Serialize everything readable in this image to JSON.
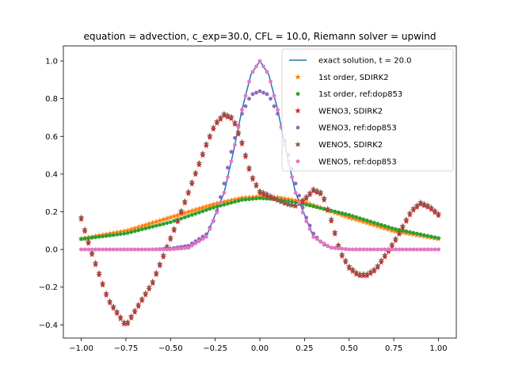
{
  "chart_data": {
    "type": "line",
    "title": "equation = advection, c_exp=30.0, CFL = 10.0, Riemann solver = upwind",
    "xlabel": "",
    "ylabel": "",
    "xlim": [
      -1.1,
      1.1
    ],
    "ylim": [
      -0.47,
      1.08
    ],
    "x_ticks": [
      -1.0,
      -0.75,
      -0.5,
      -0.25,
      0.0,
      0.25,
      0.5,
      0.75,
      1.0
    ],
    "x_tick_labels": [
      "−1.00",
      "−0.75",
      "−0.50",
      "−0.25",
      "0.00",
      "0.25",
      "0.50",
      "0.75",
      "1.00"
    ],
    "y_ticks": [
      -0.4,
      -0.2,
      0.0,
      0.2,
      0.4,
      0.6,
      0.8,
      1.0
    ],
    "y_tick_labels": [
      "−0.4",
      "−0.2",
      "0.0",
      "0.2",
      "0.4",
      "0.6",
      "0.8",
      "1.0"
    ],
    "grid": false,
    "legend_position": "top-right",
    "x_domain": [
      -1.0,
      1.0
    ],
    "sample_count": 101,
    "series": [
      {
        "name": "exact solution, t = 20.0",
        "style": "line",
        "color": "#1f77b4",
        "x": [
          -1.0,
          -0.9,
          -0.8,
          -0.7,
          -0.6,
          -0.5,
          -0.4,
          -0.3,
          -0.2,
          -0.15,
          -0.1,
          -0.05,
          0.0,
          0.05,
          0.1,
          0.15,
          0.2,
          0.3,
          0.4,
          0.5,
          0.6,
          0.7,
          0.8,
          0.9,
          1.0
        ],
        "y": [
          0.0,
          0.0,
          0.0,
          0.0,
          0.0,
          0.0005,
          0.008,
          0.067,
          0.301,
          0.509,
          0.741,
          0.928,
          1.0,
          0.928,
          0.741,
          0.509,
          0.301,
          0.067,
          0.008,
          0.0005,
          0.0,
          0.0,
          0.0,
          0.0,
          0.0
        ]
      },
      {
        "name": "1st order, SDIRK2",
        "style": "star",
        "color": "#ff7f0e",
        "x": [
          -1.0,
          -0.75,
          -0.5,
          -0.25,
          -0.1,
          0.0,
          0.1,
          0.25,
          0.5,
          0.75,
          1.0
        ],
        "y": [
          0.057,
          0.098,
          0.17,
          0.242,
          0.273,
          0.28,
          0.276,
          0.25,
          0.17,
          0.098,
          0.057
        ]
      },
      {
        "name": "1st order, ref:dop853",
        "style": "dot",
        "color": "#2ca02c",
        "x": [
          -1.0,
          -0.75,
          -0.5,
          -0.25,
          -0.1,
          0.0,
          0.1,
          0.25,
          0.5,
          0.75,
          1.0
        ],
        "y": [
          0.055,
          0.085,
          0.145,
          0.225,
          0.263,
          0.272,
          0.265,
          0.24,
          0.183,
          0.11,
          0.06
        ]
      },
      {
        "name": "WENO3, SDIRK2",
        "style": "star",
        "color": "#d62728",
        "x": [
          -1.0,
          -0.95,
          -0.85,
          -0.75,
          -0.6,
          -0.45,
          -0.3,
          -0.25,
          -0.2,
          -0.15,
          -0.1,
          -0.05,
          0.0,
          0.05,
          0.1,
          0.15,
          0.2,
          0.25,
          0.3,
          0.35,
          0.4,
          0.45,
          0.5,
          0.55,
          0.6,
          0.65,
          0.75,
          0.85,
          0.9,
          0.95,
          1.0
        ],
        "y": [
          0.16,
          0.0,
          -0.27,
          -0.41,
          -0.18,
          0.17,
          0.55,
          0.66,
          0.71,
          0.69,
          0.56,
          0.39,
          0.3,
          0.28,
          0.26,
          0.24,
          0.23,
          0.26,
          0.31,
          0.29,
          0.15,
          -0.02,
          -0.1,
          -0.14,
          -0.14,
          -0.11,
          0.03,
          0.2,
          0.24,
          0.22,
          0.18
        ]
      },
      {
        "name": "WENO3, ref:dop853",
        "style": "dot",
        "color": "#9467bd",
        "x": [
          -1.0,
          -0.6,
          -0.5,
          -0.4,
          -0.3,
          -0.25,
          -0.2,
          -0.15,
          -0.1,
          -0.05,
          0.0,
          0.05,
          0.1,
          0.15,
          0.2,
          0.25,
          0.3,
          0.35,
          0.4,
          0.5,
          0.6,
          1.0
        ],
        "y": [
          0.0,
          0.0,
          0.005,
          0.02,
          0.08,
          0.17,
          0.35,
          0.56,
          0.72,
          0.82,
          0.84,
          0.82,
          0.72,
          0.54,
          0.35,
          0.19,
          0.085,
          0.03,
          0.01,
          0.0,
          0.0,
          0.0
        ]
      },
      {
        "name": "WENO5, SDIRK2",
        "style": "star",
        "color": "#8c564b",
        "x": [
          -1.0,
          -0.95,
          -0.85,
          -0.75,
          -0.6,
          -0.45,
          -0.3,
          -0.25,
          -0.2,
          -0.15,
          -0.1,
          -0.05,
          0.0,
          0.05,
          0.1,
          0.15,
          0.2,
          0.25,
          0.3,
          0.35,
          0.4,
          0.45,
          0.5,
          0.55,
          0.6,
          0.65,
          0.75,
          0.85,
          0.9,
          0.95,
          1.0
        ],
        "y": [
          0.17,
          0.01,
          -0.26,
          -0.4,
          -0.17,
          0.18,
          0.56,
          0.67,
          0.72,
          0.7,
          0.57,
          0.4,
          0.31,
          0.29,
          0.26,
          0.24,
          0.23,
          0.27,
          0.32,
          0.3,
          0.16,
          -0.01,
          -0.09,
          -0.13,
          -0.13,
          -0.1,
          0.04,
          0.21,
          0.25,
          0.23,
          0.19
        ]
      },
      {
        "name": "WENO5, ref:dop853",
        "style": "dot",
        "color": "#e377c2",
        "x": [
          -1.0,
          -0.6,
          -0.5,
          -0.4,
          -0.3,
          -0.25,
          -0.2,
          -0.15,
          -0.1,
          -0.05,
          0.0,
          0.05,
          0.1,
          0.15,
          0.2,
          0.25,
          0.3,
          0.4,
          0.5,
          0.6,
          1.0
        ],
        "y": [
          0.0,
          0.0,
          0.0005,
          0.008,
          0.067,
          0.17,
          0.301,
          0.509,
          0.741,
          0.928,
          1.0,
          0.928,
          0.741,
          0.509,
          0.301,
          0.17,
          0.067,
          0.008,
          0.0005,
          0.0,
          0.0
        ]
      }
    ]
  }
}
